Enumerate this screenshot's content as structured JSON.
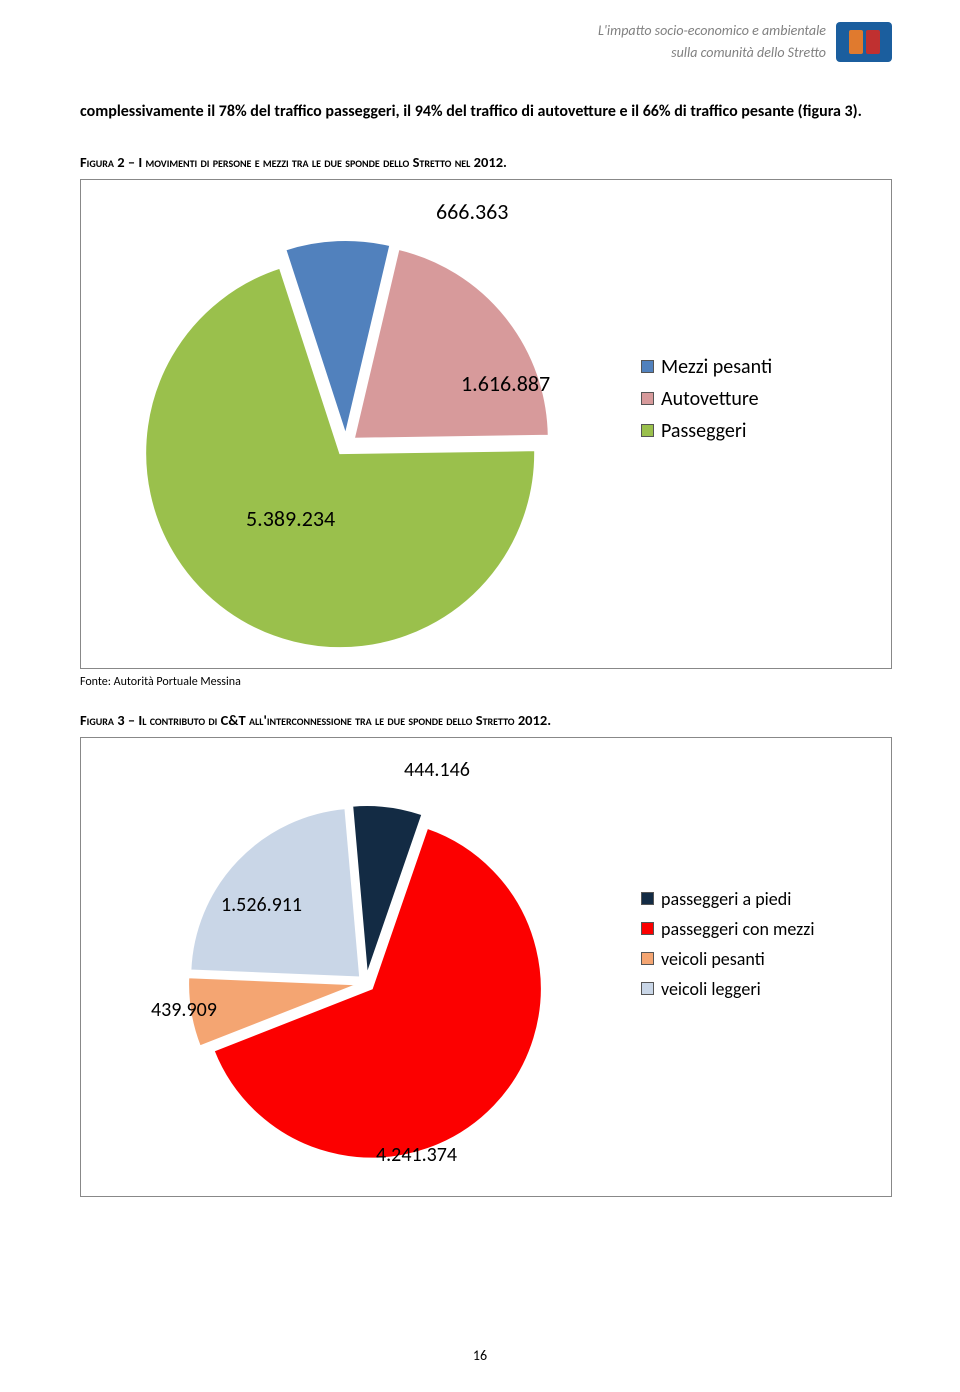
{
  "header": {
    "line1": "L'impatto socio-economico e ambientale",
    "line2": "sulla comunità dello Stretto"
  },
  "intro": "complessivamente il 78% del traffico passeggeri, il 94% del traffico di autovetture e il 66% di traffico pesante (figura 3).",
  "figure2_caption_prefix": "Figura 2 – ",
  "figure2_caption": "I movimenti di persone e mezzi tra le due sponde dello Stretto nel 2012.",
  "chart1": {
    "type": "pie",
    "background_color": "#ffffff",
    "border_color": "#888888",
    "label_fontsize": 22,
    "slices": [
      {
        "label": "666.363",
        "value": 666363,
        "color": "#5181bd",
        "legend": "Mezzi pesanti"
      },
      {
        "label": "1.616.887",
        "value": 1616887,
        "color": "#d79a9b",
        "legend": "Autovetture"
      },
      {
        "label": "5.389.234",
        "value": 5389234,
        "color": "#9ac04c",
        "legend": "Passeggeri"
      }
    ],
    "legend_fontsize": 20
  },
  "source1": "Fonte: Autorità Portuale Messina",
  "figure3_caption_prefix": "Figura 3 – ",
  "figure3_caption": "Il contributo di C&T all'interconnessione tra le due sponde dello Stretto 2012.",
  "chart2": {
    "type": "pie",
    "background_color": "#ffffff",
    "border_color": "#888888",
    "label_fontsize": 20,
    "slices": [
      {
        "label": "444.146",
        "value": 444146,
        "color": "#132b44",
        "legend": "passeggeri a piedi"
      },
      {
        "label": "4.241.374",
        "value": 4241374,
        "color": "#fc0000",
        "legend": "passeggeri con mezzi"
      },
      {
        "label": "439.909",
        "value": 439909,
        "color": "#f4a572",
        "legend": "veicoli pesanti"
      },
      {
        "label": "1.526.911",
        "value": 1526911,
        "color": "#c9d6e7",
        "legend": "veicoli leggeri"
      }
    ],
    "legend_fontsize": 18
  },
  "page_number": "16"
}
